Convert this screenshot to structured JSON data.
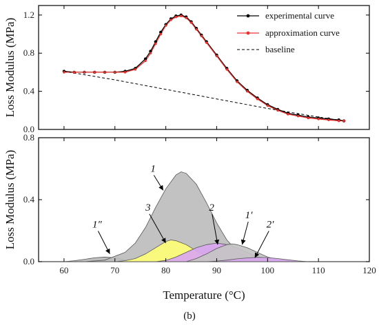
{
  "figure": {
    "caption": "(b)"
  },
  "chart_data": [
    {
      "type": "line",
      "ylabel": "Loss Modulus (MPa)",
      "xlim": [
        55,
        120
      ],
      "ylim": [
        0,
        1.3
      ],
      "yticks": [
        "0.0",
        "0.4",
        "0.8",
        "1.2"
      ],
      "legend_position": "top-right",
      "legend": [
        "experimental curve",
        "approximation curve",
        "baseline"
      ],
      "series": [
        {
          "name": "experimental curve",
          "color": "#000000",
          "x": [
            60,
            62,
            64,
            66,
            68,
            70,
            72,
            74,
            76,
            77,
            78,
            79,
            80,
            81,
            82,
            83,
            84,
            85,
            86,
            87,
            88,
            90,
            92,
            94,
            96,
            98,
            100,
            102,
            104,
            106,
            108,
            110,
            112,
            114,
            115
          ],
          "y": [
            0.61,
            0.6,
            0.6,
            0.6,
            0.6,
            0.6,
            0.61,
            0.64,
            0.74,
            0.82,
            0.92,
            1.02,
            1.1,
            1.16,
            1.19,
            1.2,
            1.18,
            1.13,
            1.06,
            0.99,
            0.92,
            0.78,
            0.64,
            0.51,
            0.41,
            0.33,
            0.26,
            0.21,
            0.17,
            0.15,
            0.13,
            0.12,
            0.11,
            0.1,
            0.09
          ]
        },
        {
          "name": "approximation curve",
          "color": "#e8302c",
          "x": [
            60,
            62,
            64,
            66,
            68,
            70,
            72,
            74,
            76,
            77,
            78,
            79,
            80,
            81,
            82,
            83,
            84,
            85,
            86,
            87,
            88,
            90,
            92,
            94,
            96,
            98,
            100,
            102,
            104,
            106,
            108,
            110,
            112,
            114,
            115
          ],
          "y": [
            0.6,
            0.6,
            0.6,
            0.6,
            0.6,
            0.6,
            0.6,
            0.63,
            0.72,
            0.8,
            0.9,
            1.0,
            1.09,
            1.15,
            1.18,
            1.19,
            1.17,
            1.12,
            1.05,
            0.98,
            0.91,
            0.77,
            0.63,
            0.5,
            0.4,
            0.32,
            0.25,
            0.2,
            0.16,
            0.14,
            0.12,
            0.11,
            0.1,
            0.09,
            0.09
          ]
        },
        {
          "name": "baseline",
          "color": "#000000",
          "dash": true,
          "x": [
            60,
            70,
            80,
            90,
            100,
            110,
            115
          ],
          "y": [
            0.61,
            0.52,
            0.42,
            0.32,
            0.22,
            0.13,
            0.09
          ]
        }
      ]
    },
    {
      "type": "area",
      "xlabel": "Temperature (°C)",
      "ylabel": "Loss Modulus (MPa)",
      "xlim": [
        55,
        120
      ],
      "xticks": [
        60,
        70,
        80,
        90,
        100,
        110,
        120
      ],
      "ylim": [
        0,
        0.8
      ],
      "yticks": [
        "0.0",
        "0.4",
        "0.8"
      ],
      "series": [
        {
          "name": "1″",
          "color": "#b9b9b9",
          "x": [
            60,
            62,
            64,
            66,
            68,
            70,
            72,
            74
          ],
          "y": [
            0.0,
            0.006,
            0.015,
            0.025,
            0.03,
            0.025,
            0.012,
            0.004
          ]
        },
        {
          "name": "1",
          "color": "#bdbdbd",
          "x": [
            64,
            68,
            72,
            74,
            76,
            78,
            80,
            82,
            83,
            84,
            86,
            88,
            90,
            92,
            94,
            96,
            98,
            100,
            102
          ],
          "y": [
            0.0,
            0.01,
            0.06,
            0.12,
            0.22,
            0.35,
            0.47,
            0.56,
            0.58,
            0.57,
            0.5,
            0.38,
            0.25,
            0.14,
            0.07,
            0.03,
            0.012,
            0.004,
            0.0
          ]
        },
        {
          "name": "3",
          "color": "#fefe78",
          "x": [
            70,
            72,
            74,
            76,
            78,
            80,
            81,
            82,
            84,
            86,
            88,
            90,
            92
          ],
          "y": [
            0.0,
            0.006,
            0.02,
            0.05,
            0.09,
            0.13,
            0.14,
            0.135,
            0.11,
            0.07,
            0.035,
            0.012,
            0.0
          ]
        },
        {
          "name": "2",
          "color": "#d9a6f0",
          "x": [
            78,
            80,
            82,
            84,
            86,
            88,
            90,
            92,
            94,
            96,
            98,
            100,
            102
          ],
          "y": [
            0.0,
            0.008,
            0.03,
            0.06,
            0.09,
            0.11,
            0.12,
            0.11,
            0.09,
            0.06,
            0.03,
            0.012,
            0.0
          ]
        },
        {
          "name": "1′",
          "color": "#c4c4c4",
          "x": [
            84,
            86,
            88,
            90,
            92,
            93,
            94,
            96,
            98,
            100,
            102,
            104,
            106
          ],
          "y": [
            0.0,
            0.02,
            0.05,
            0.085,
            0.11,
            0.115,
            0.11,
            0.09,
            0.06,
            0.03,
            0.012,
            0.004,
            0.0
          ]
        },
        {
          "name": "2′",
          "color": "#d9a6f0",
          "x": [
            88,
            90,
            92,
            94,
            96,
            98,
            100,
            102,
            104,
            106,
            108
          ],
          "y": [
            0.0,
            0.004,
            0.01,
            0.018,
            0.024,
            0.028,
            0.026,
            0.02,
            0.012,
            0.005,
            0.0
          ]
        }
      ],
      "annotations": [
        {
          "label": "1″",
          "text_at": [
            66.5,
            0.22
          ],
          "arrow_to": [
            69,
            0.05
          ]
        },
        {
          "label": "3",
          "text_at": [
            76.5,
            0.33
          ],
          "arrow_to": [
            80,
            0.12
          ]
        },
        {
          "label": "1",
          "text_at": [
            77.5,
            0.58
          ],
          "arrow_to": [
            79.5,
            0.46
          ]
        },
        {
          "label": "2",
          "text_at": [
            89,
            0.33
          ],
          "arrow_to": [
            90.2,
            0.11
          ]
        },
        {
          "label": "1′",
          "text_at": [
            96.3,
            0.28
          ],
          "arrow_to": [
            95,
            0.11
          ]
        },
        {
          "label": "2′",
          "text_at": [
            100.5,
            0.22
          ],
          "arrow_to": [
            97.5,
            0.025
          ]
        }
      ]
    }
  ]
}
